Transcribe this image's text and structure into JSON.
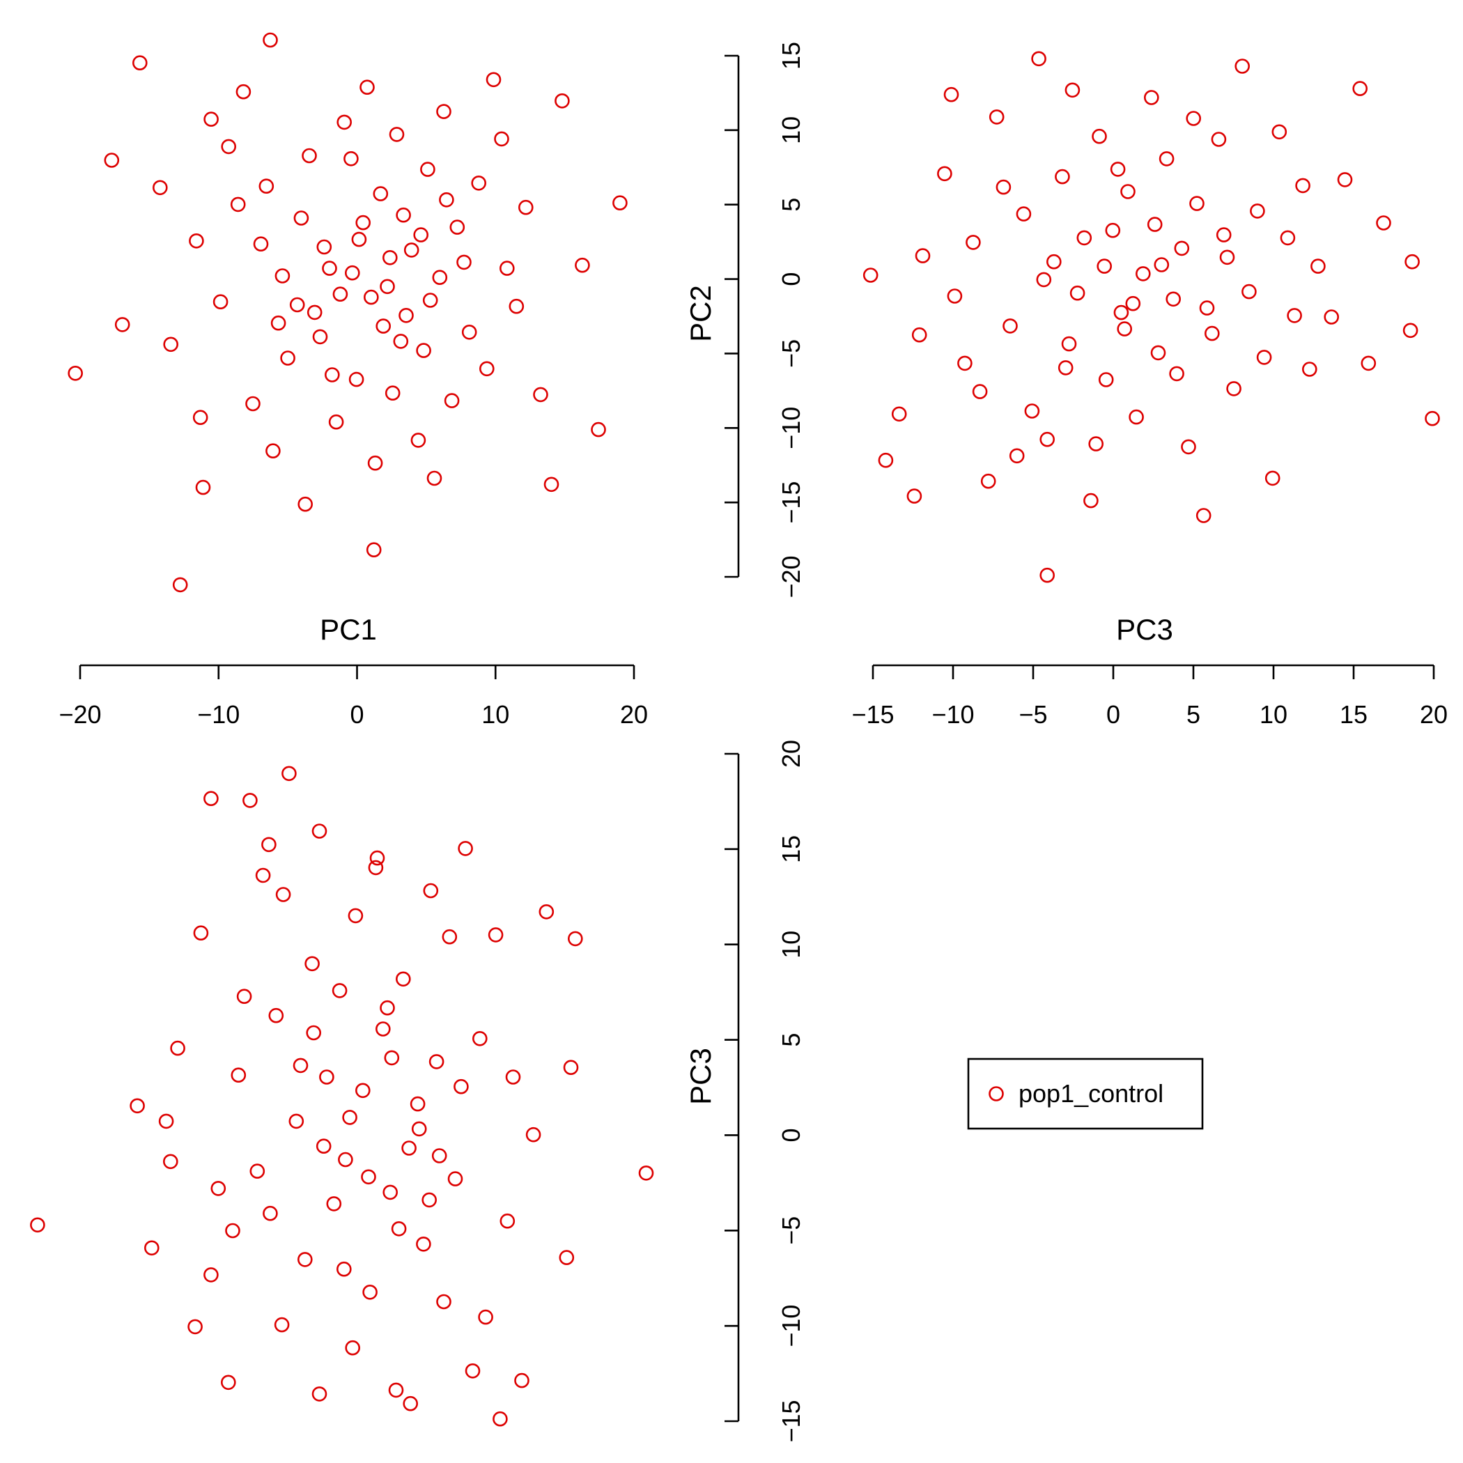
{
  "chart_data": {
    "type": "scatter",
    "title": "",
    "color": "#dd0000",
    "panels": [
      {
        "id": "pc1-vs-pc2",
        "xlabel": "",
        "ylabel": "",
        "xlim": [
          -21.5,
          21.5
        ],
        "ylim": [
          -21.5,
          16.5
        ],
        "points": [
          [
            -3.5,
            4.0
          ],
          [
            -15.5,
            14.2
          ],
          [
            -5.8,
            15.7
          ],
          [
            -20.3,
            -6.2
          ],
          [
            -12.5,
            -20.1
          ],
          [
            -11.0,
            -9.1
          ],
          [
            -14.0,
            6.0
          ],
          [
            -10.2,
            10.5
          ],
          [
            -8.2,
            4.9
          ],
          [
            -9.5,
            -1.5
          ],
          [
            -6.5,
            2.3
          ],
          [
            -4.9,
            0.2
          ],
          [
            -3.8,
            -1.7
          ],
          [
            -2.1,
            -3.8
          ],
          [
            -1.4,
            0.7
          ],
          [
            0.8,
            2.6
          ],
          [
            1.7,
            -1.2
          ],
          [
            2.6,
            -3.1
          ],
          [
            3.1,
            1.4
          ],
          [
            4.1,
            4.2
          ],
          [
            4.3,
            -2.4
          ],
          [
            5.6,
            -4.7
          ],
          [
            6.8,
            0.1
          ],
          [
            8.1,
            3.4
          ],
          [
            9.0,
            -3.5
          ],
          [
            9.7,
            6.3
          ],
          [
            11.4,
            9.2
          ],
          [
            12.5,
            -1.8
          ],
          [
            13.2,
            4.7
          ],
          [
            14.3,
            -7.6
          ],
          [
            15.9,
            11.7
          ],
          [
            17.4,
            0.9
          ],
          [
            18.6,
            -9.9
          ],
          [
            20.2,
            5.0
          ],
          [
            -7.1,
            -8.2
          ],
          [
            -5.6,
            -11.3
          ],
          [
            -0.9,
            -9.4
          ],
          [
            0.6,
            -6.6
          ],
          [
            2.0,
            -12.1
          ],
          [
            3.3,
            -7.5
          ],
          [
            5.2,
            -10.6
          ],
          [
            6.4,
            -13.1
          ],
          [
            7.7,
            -8.0
          ],
          [
            -2.9,
            8.1
          ],
          [
            -0.3,
            10.3
          ],
          [
            1.4,
            12.6
          ],
          [
            3.6,
            9.5
          ],
          [
            5.9,
            7.2
          ],
          [
            7.1,
            11.0
          ],
          [
            -8.9,
            8.7
          ],
          [
            -11.3,
            2.5
          ],
          [
            -13.2,
            -4.3
          ],
          [
            -10.8,
            -13.7
          ],
          [
            -6.1,
            6.1
          ],
          [
            -4.5,
            -5.2
          ],
          [
            -2.5,
            -2.2
          ],
          [
            -1.8,
            2.1
          ],
          [
            -0.6,
            -1.0
          ],
          [
            0.3,
            0.4
          ],
          [
            1.1,
            3.7
          ],
          [
            2.4,
            5.6
          ],
          [
            2.9,
            -0.5
          ],
          [
            4.7,
            1.9
          ],
          [
            5.4,
            2.9
          ],
          [
            6.1,
            -1.4
          ],
          [
            7.3,
            5.2
          ],
          [
            8.6,
            1.1
          ],
          [
            10.3,
            -5.9
          ],
          [
            11.8,
            0.7
          ],
          [
            -3.2,
            -14.8
          ],
          [
            1.9,
            -17.8
          ],
          [
            -16.8,
            -3.0
          ],
          [
            -17.6,
            7.8
          ],
          [
            15.1,
            -13.5
          ],
          [
            10.8,
            13.1
          ],
          [
            -7.8,
            12.3
          ],
          [
            0.2,
            7.9
          ],
          [
            -1.2,
            -6.3
          ],
          [
            3.9,
            -4.1
          ],
          [
            -5.2,
            -2.9
          ]
        ]
      },
      {
        "id": "pc3-vs-pc2",
        "xlabel": "PC3",
        "ylabel": "PC2",
        "xlim": [
          -15,
          20
        ],
        "ylim": [
          -20,
          15
        ],
        "x_ticks": [
          -15,
          -10,
          -5,
          0,
          5,
          10,
          15,
          20
        ],
        "y_ticks": [
          -20,
          -15,
          -10,
          -5,
          0,
          5,
          10,
          15
        ],
        "points": [
          [
            -14.6,
            0.3
          ],
          [
            -13.7,
            -12.1
          ],
          [
            -12.9,
            -9.0
          ],
          [
            -12.0,
            -14.5
          ],
          [
            -11.7,
            -3.7
          ],
          [
            -10.2,
            7.1
          ],
          [
            -9.8,
            12.4
          ],
          [
            -9.0,
            -5.6
          ],
          [
            -8.5,
            2.5
          ],
          [
            -7.6,
            -13.5
          ],
          [
            -7.1,
            10.9
          ],
          [
            -6.3,
            -3.1
          ],
          [
            -5.5,
            4.4
          ],
          [
            -5.0,
            -8.8
          ],
          [
            -4.6,
            14.8
          ],
          [
            -4.1,
            -10.7
          ],
          [
            -3.7,
            1.2
          ],
          [
            -3.2,
            6.9
          ],
          [
            -2.8,
            -4.3
          ],
          [
            -2.3,
            -0.9
          ],
          [
            -1.9,
            2.8
          ],
          [
            -1.5,
            -14.8
          ],
          [
            -1.0,
            9.6
          ],
          [
            -0.6,
            -6.7
          ],
          [
            -0.2,
            3.3
          ],
          [
            0.3,
            -2.2
          ],
          [
            0.7,
            5.9
          ],
          [
            1.2,
            -9.2
          ],
          [
            1.6,
            0.4
          ],
          [
            2.1,
            12.2
          ],
          [
            2.5,
            -4.9
          ],
          [
            3.0,
            8.1
          ],
          [
            3.4,
            -1.3
          ],
          [
            3.9,
            2.1
          ],
          [
            4.3,
            -11.2
          ],
          [
            4.8,
            5.1
          ],
          [
            5.2,
            -15.8
          ],
          [
            5.7,
            -3.6
          ],
          [
            6.1,
            9.4
          ],
          [
            6.6,
            1.5
          ],
          [
            7.0,
            -7.3
          ],
          [
            7.5,
            14.3
          ],
          [
            7.9,
            -0.8
          ],
          [
            8.4,
            4.6
          ],
          [
            8.8,
            -5.2
          ],
          [
            9.3,
            -13.3
          ],
          [
            9.7,
            9.9
          ],
          [
            10.2,
            2.8
          ],
          [
            10.6,
            -2.4
          ],
          [
            11.1,
            6.3
          ],
          [
            11.5,
            -6.0
          ],
          [
            12.0,
            0.9
          ],
          [
            12.8,
            -2.5
          ],
          [
            13.6,
            6.7
          ],
          [
            14.5,
            12.8
          ],
          [
            15.0,
            -5.6
          ],
          [
            15.9,
            3.8
          ],
          [
            17.5,
            -3.4
          ],
          [
            17.6,
            1.2
          ],
          [
            18.8,
            -9.3
          ],
          [
            -11.5,
            1.6
          ],
          [
            -9.6,
            -1.1
          ],
          [
            -8.1,
            -7.5
          ],
          [
            -6.7,
            6.2
          ],
          [
            -5.9,
            -11.8
          ],
          [
            -4.3,
            0.0
          ],
          [
            -2.6,
            12.7
          ],
          [
            -1.2,
            -11.0
          ],
          [
            0.1,
            7.4
          ],
          [
            1.0,
            -1.6
          ],
          [
            2.3,
            3.7
          ],
          [
            3.6,
            -6.3
          ],
          [
            4.6,
            10.8
          ],
          [
            5.4,
            -1.9
          ],
          [
            6.4,
            3.0
          ],
          [
            -4.1,
            -19.8
          ],
          [
            -3.0,
            -5.9
          ],
          [
            -0.7,
            0.9
          ],
          [
            0.5,
            -3.3
          ],
          [
            2.7,
            1.0
          ]
        ]
      },
      {
        "id": "pc1-vs-pc3",
        "xlabel": "PC1",
        "ylabel": "PC3",
        "xlim": [
          -20,
          20
        ],
        "ylim": [
          -15,
          20
        ],
        "x_ticks": [
          -20,
          -10,
          0,
          10,
          20
        ],
        "y_ticks": [
          -15,
          -10,
          -5,
          0,
          5,
          10,
          15,
          20
        ],
        "points": [
          [
            -21.5,
            -4.6
          ],
          [
            -14.6,
            1.6
          ],
          [
            -13.6,
            -5.8
          ],
          [
            -12.3,
            -1.3
          ],
          [
            -11.8,
            4.6
          ],
          [
            -10.6,
            -9.9
          ],
          [
            -10.2,
            10.6
          ],
          [
            -9.5,
            -7.2
          ],
          [
            -9.5,
            17.6
          ],
          [
            -8.3,
            -12.8
          ],
          [
            -7.6,
            3.2
          ],
          [
            -6.8,
            17.5
          ],
          [
            -6.3,
            -1.8
          ],
          [
            -5.9,
            13.6
          ],
          [
            -5.5,
            15.2
          ],
          [
            -5.0,
            6.3
          ],
          [
            -4.6,
            -9.8
          ],
          [
            -4.5,
            12.6
          ],
          [
            -4.1,
            18.9
          ],
          [
            -3.6,
            0.8
          ],
          [
            -3.0,
            -6.4
          ],
          [
            -2.5,
            9.0
          ],
          [
            -2.0,
            -13.4
          ],
          [
            -2.0,
            15.9
          ],
          [
            -1.5,
            3.1
          ],
          [
            -1.0,
            -3.5
          ],
          [
            -0.6,
            7.6
          ],
          [
            -0.2,
            -1.2
          ],
          [
            0.3,
            -11.0
          ],
          [
            0.5,
            11.5
          ],
          [
            1.0,
            2.4
          ],
          [
            1.5,
            -8.1
          ],
          [
            1.9,
            14.0
          ],
          [
            2.0,
            14.5
          ],
          [
            2.4,
            5.6
          ],
          [
            2.9,
            -2.9
          ],
          [
            3.3,
            -13.2
          ],
          [
            3.8,
            8.2
          ],
          [
            4.2,
            -0.6
          ],
          [
            4.3,
            -13.9
          ],
          [
            4.8,
            1.7
          ],
          [
            5.2,
            -5.6
          ],
          [
            5.7,
            12.8
          ],
          [
            6.1,
            3.9
          ],
          [
            6.6,
            -8.6
          ],
          [
            7.0,
            10.4
          ],
          [
            7.4,
            -2.2
          ],
          [
            8.1,
            15.0
          ],
          [
            8.6,
            -12.2
          ],
          [
            9.1,
            5.1
          ],
          [
            9.5,
            -9.4
          ],
          [
            10.2,
            10.5
          ],
          [
            10.5,
            -14.7
          ],
          [
            11.0,
            -4.4
          ],
          [
            11.4,
            3.1
          ],
          [
            12.0,
            -12.7
          ],
          [
            12.8,
            0.1
          ],
          [
            13.7,
            11.7
          ],
          [
            15.1,
            -6.3
          ],
          [
            15.4,
            3.6
          ],
          [
            15.7,
            10.3
          ],
          [
            20.6,
            -1.9
          ],
          [
            -12.6,
            0.8
          ],
          [
            -9.0,
            -2.7
          ],
          [
            -7.2,
            7.3
          ],
          [
            -5.4,
            -4.0
          ],
          [
            -3.3,
            3.7
          ],
          [
            -1.7,
            -0.5
          ],
          [
            0.1,
            1.0
          ],
          [
            1.4,
            -2.1
          ],
          [
            2.7,
            6.7
          ],
          [
            3.5,
            -4.8
          ],
          [
            4.9,
            0.4
          ],
          [
            6.3,
            -1.0
          ],
          [
            7.8,
            2.6
          ],
          [
            -8.0,
            -4.9
          ],
          [
            -2.4,
            5.4
          ],
          [
            -0.3,
            -6.9
          ],
          [
            3.0,
            4.1
          ],
          [
            5.6,
            -3.3
          ]
        ]
      }
    ],
    "legend": {
      "entries": [
        "pop1_control"
      ],
      "placement": "bottom-right"
    }
  }
}
